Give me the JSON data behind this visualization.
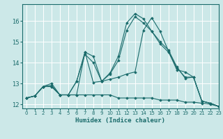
{
  "title": "",
  "xlabel": "Humidex (Indice chaleur)",
  "ylabel": "",
  "bg_color": "#cce8e8",
  "grid_color": "#ffffff",
  "line_color": "#1a6b6b",
  "xlim": [
    -0.5,
    23
  ],
  "ylim": [
    11.8,
    16.8
  ],
  "yticks": [
    12,
    13,
    14,
    15,
    16
  ],
  "xticks": [
    0,
    1,
    2,
    3,
    4,
    5,
    6,
    7,
    8,
    9,
    10,
    11,
    12,
    13,
    14,
    15,
    16,
    17,
    18,
    19,
    20,
    21,
    22,
    23
  ],
  "series": [
    {
      "x": [
        0,
        1,
        2,
        3,
        4,
        5,
        6,
        7,
        8,
        9,
        10,
        11,
        12,
        13,
        14,
        15,
        16,
        17,
        18,
        19,
        20,
        21,
        22,
        23
      ],
      "y": [
        12.3,
        12.4,
        12.85,
        12.85,
        12.45,
        12.45,
        12.45,
        12.45,
        12.45,
        12.45,
        12.45,
        12.3,
        12.3,
        12.3,
        12.3,
        12.3,
        12.2,
        12.2,
        12.2,
        12.1,
        12.1,
        12.05,
        12.0,
        11.9
      ]
    },
    {
      "x": [
        0,
        1,
        2,
        3,
        4,
        5,
        6,
        7,
        8,
        9,
        10,
        11,
        12,
        13,
        14,
        15,
        16,
        17,
        18,
        19,
        20,
        21,
        22,
        23
      ],
      "y": [
        12.3,
        12.4,
        12.85,
        13.0,
        12.45,
        12.45,
        13.1,
        14.5,
        13.05,
        13.1,
        13.5,
        14.3,
        15.9,
        16.35,
        16.1,
        15.5,
        15.0,
        14.6,
        13.8,
        13.25,
        13.3,
        12.15,
        12.05,
        11.9
      ]
    },
    {
      "x": [
        0,
        1,
        2,
        3,
        4,
        5,
        6,
        7,
        8,
        9,
        10,
        11,
        12,
        13,
        14,
        15,
        16,
        17,
        18,
        19,
        20,
        21,
        22,
        23
      ],
      "y": [
        12.3,
        12.4,
        12.85,
        12.85,
        12.45,
        12.45,
        12.45,
        14.5,
        14.3,
        13.1,
        13.2,
        13.3,
        13.45,
        13.55,
        15.55,
        16.15,
        15.5,
        14.55,
        13.65,
        13.55,
        13.3,
        12.15,
        12.05,
        11.9
      ]
    },
    {
      "x": [
        0,
        1,
        2,
        3,
        4,
        5,
        6,
        7,
        8,
        9,
        10,
        11,
        12,
        13,
        14,
        15,
        16,
        17,
        18,
        19,
        20,
        21,
        22,
        23
      ],
      "y": [
        12.3,
        12.4,
        12.85,
        12.9,
        12.45,
        12.45,
        13.1,
        14.4,
        14.0,
        13.1,
        13.45,
        14.1,
        15.55,
        16.2,
        15.9,
        15.5,
        14.9,
        14.5,
        13.75,
        13.3,
        13.3,
        12.15,
        12.05,
        11.9
      ]
    }
  ]
}
